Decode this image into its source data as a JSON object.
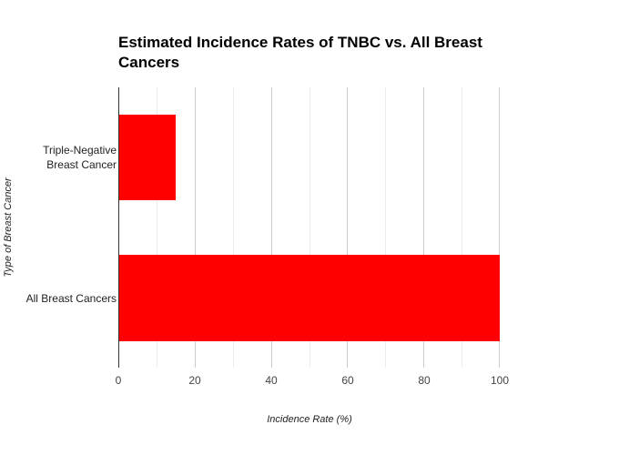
{
  "chart_data": {
    "type": "bar",
    "orientation": "horizontal",
    "title": "Estimated Incidence Rates of TNBC vs. All Breast Cancers",
    "title_lines": [
      "Estimated Incidence Rates of TNBC vs. All Breast",
      "Cancers"
    ],
    "categories": [
      "Triple-Negative Breast Cancer",
      "All Breast Cancers"
    ],
    "category_lines": [
      [
        "Triple-Negative",
        "Breast Cancer"
      ],
      [
        "All Breast Cancers"
      ]
    ],
    "values": [
      15,
      100
    ],
    "xlabel": "Incidence Rate (%)",
    "ylabel": "Type of Breast Cancer",
    "xlim": [
      0,
      100
    ],
    "xticks": [
      "0",
      "20",
      "40",
      "60",
      "80",
      "100"
    ],
    "grid": true,
    "legend": false,
    "bar_color": "#ff0000"
  }
}
